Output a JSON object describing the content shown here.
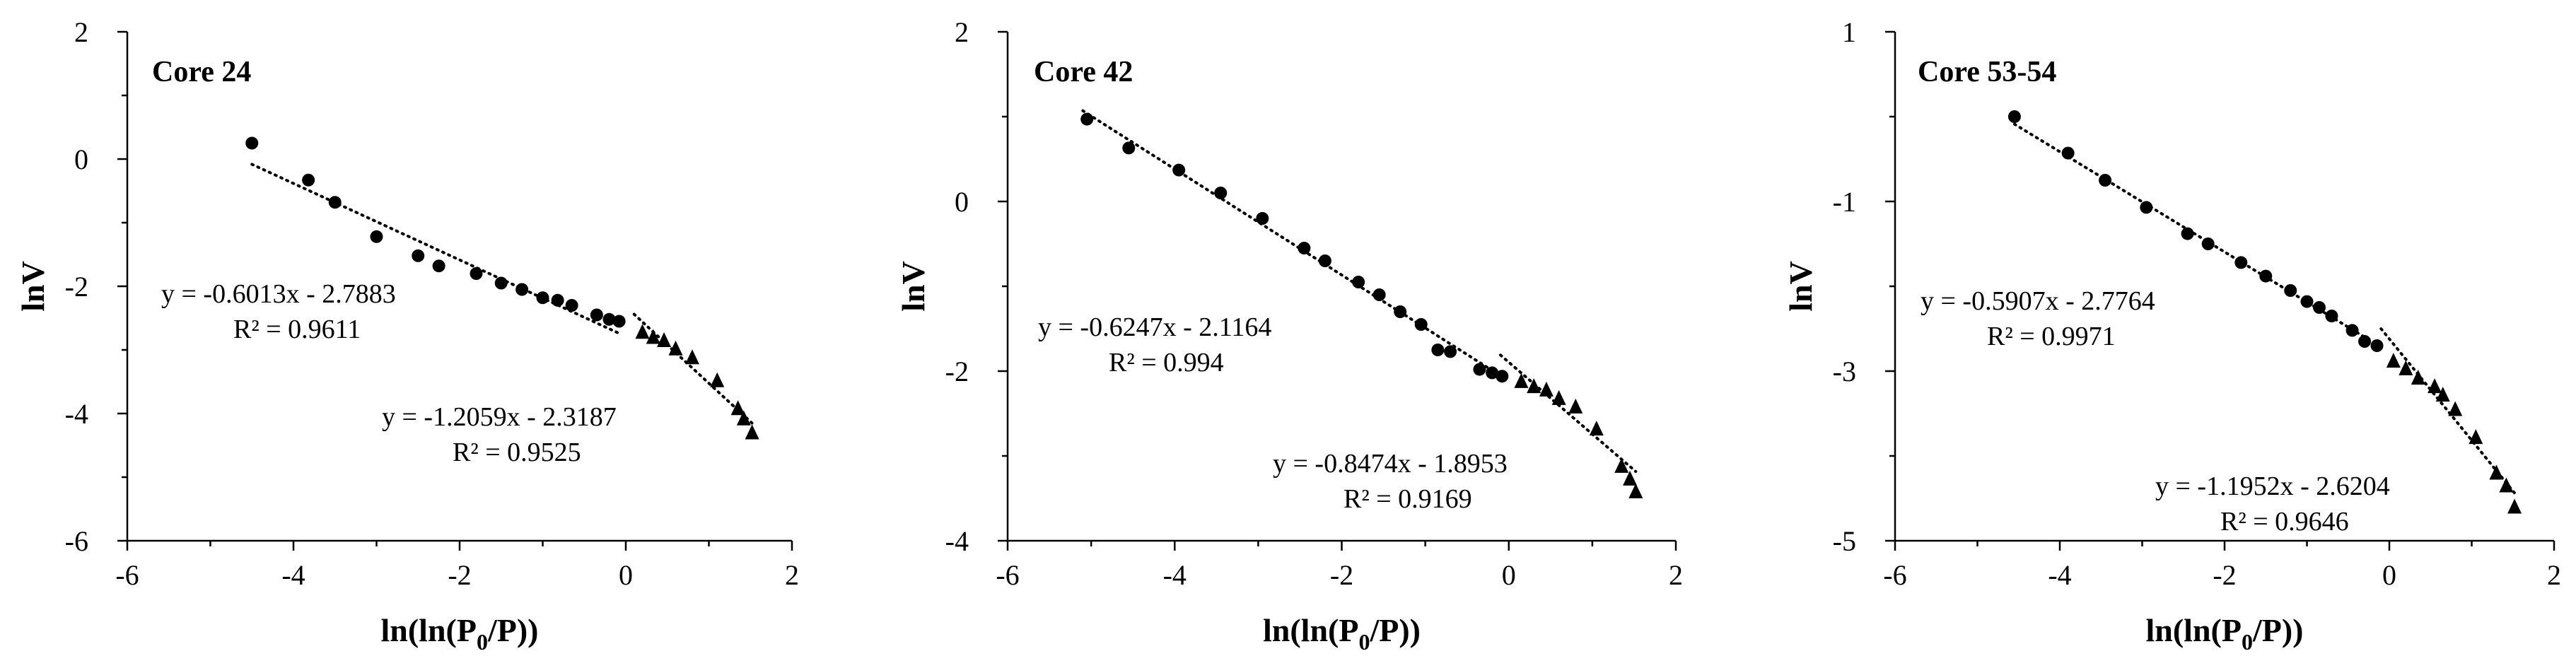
{
  "chart_data": [
    {
      "type": "scatter",
      "title": "Core 24",
      "xlabel_main": "ln(ln(P",
      "xlabel_sub": "0",
      "xlabel_tail": "/P))",
      "ylabel": "lnV",
      "xlim": [
        -6,
        2
      ],
      "ylim": [
        -6,
        2
      ],
      "xticks": [
        -6,
        -4,
        -2,
        0,
        2
      ],
      "yticks": [
        2,
        0,
        -2,
        -4,
        -6
      ],
      "series": [
        {
          "name": "circles",
          "marker": "circle",
          "x": [
            -4.5,
            -3.82,
            -3.5,
            -3.0,
            -2.5,
            -2.25,
            -1.8,
            -1.5,
            -1.25,
            -1.0,
            -0.82,
            -0.65,
            -0.35,
            -0.2,
            -0.08
          ],
          "y": [
            0.25,
            -0.33,
            -0.68,
            -1.22,
            -1.52,
            -1.68,
            -1.8,
            -1.95,
            -2.05,
            -2.18,
            -2.22,
            -2.3,
            -2.45,
            -2.52,
            -2.55
          ]
        },
        {
          "name": "triangles",
          "marker": "triangle",
          "x": [
            0.2,
            0.33,
            0.46,
            0.6,
            0.8,
            1.1,
            1.35,
            1.42,
            1.52
          ],
          "y": [
            -2.72,
            -2.8,
            -2.85,
            -2.98,
            -3.12,
            -3.48,
            -3.92,
            -4.08,
            -4.3
          ]
        }
      ],
      "trendlines": [
        {
          "slope": -0.6013,
          "intercept": -2.7883,
          "x_range": [
            -4.5,
            -0.05
          ],
          "label": "y = -0.6013x - 2.7883",
          "r2": "R² = 0.9611"
        },
        {
          "slope": -1.2059,
          "intercept": -2.3187,
          "x_range": [
            0.1,
            1.52
          ],
          "label": "y = -1.2059x - 2.3187",
          "r2": "R² = 0.9525"
        }
      ]
    },
    {
      "type": "scatter",
      "title": "Core 42",
      "xlabel_main": "ln(ln(P",
      "xlabel_sub": "0",
      "xlabel_tail": "/P))",
      "ylabel": "lnV",
      "xlim": [
        -6,
        2
      ],
      "ylim": [
        -4,
        2
      ],
      "xticks": [
        -6,
        -4,
        -2,
        0,
        2
      ],
      "yticks": [
        2,
        0,
        -2,
        -4
      ],
      "series": [
        {
          "name": "circles",
          "marker": "circle",
          "x": [
            -5.05,
            -4.55,
            -3.95,
            -3.45,
            -2.95,
            -2.45,
            -2.2,
            -1.8,
            -1.55,
            -1.3,
            -1.05,
            -0.85,
            -0.7,
            -0.35,
            -0.2,
            -0.08
          ],
          "y": [
            0.97,
            0.63,
            0.37,
            0.1,
            -0.2,
            -0.55,
            -0.7,
            -0.95,
            -1.1,
            -1.3,
            -1.45,
            -1.75,
            -1.77,
            -1.98,
            -2.02,
            -2.06
          ]
        },
        {
          "name": "triangles",
          "marker": "triangle",
          "x": [
            0.15,
            0.3,
            0.45,
            0.6,
            0.8,
            1.05,
            1.35,
            1.45,
            1.52
          ],
          "y": [
            -2.12,
            -2.18,
            -2.22,
            -2.32,
            -2.42,
            -2.68,
            -3.12,
            -3.27,
            -3.42
          ]
        }
      ],
      "trendlines": [
        {
          "slope": -0.6247,
          "intercept": -2.1164,
          "x_range": [
            -5.1,
            -0.05
          ],
          "label": "y = -0.6247x - 2.1164",
          "r2": "R² = 0.994"
        },
        {
          "slope": -0.8474,
          "intercept": -1.8953,
          "x_range": [
            -0.1,
            1.52
          ],
          "label": "y = -0.8474x - 1.8953",
          "r2": "R² = 0.9169"
        }
      ]
    },
    {
      "type": "scatter",
      "title": "Core 53-54",
      "xlabel_main": "ln(ln(P",
      "xlabel_sub": "0",
      "xlabel_tail": "/P))",
      "ylabel": "lnV",
      "xlim": [
        -6,
        2
      ],
      "ylim": [
        -5,
        1
      ],
      "xticks": [
        -6,
        -4,
        -2,
        0,
        2
      ],
      "yticks": [
        1,
        -1,
        -3,
        -5
      ],
      "series": [
        {
          "name": "circles",
          "marker": "circle",
          "x": [
            -4.55,
            -3.9,
            -3.45,
            -2.95,
            -2.45,
            -2.2,
            -1.8,
            -1.5,
            -1.2,
            -1.0,
            -0.85,
            -0.7,
            -0.45,
            -0.3,
            -0.15
          ],
          "y": [
            0.0,
            -0.43,
            -0.75,
            -1.07,
            -1.38,
            -1.5,
            -1.72,
            -1.88,
            -2.05,
            -2.18,
            -2.25,
            -2.35,
            -2.52,
            -2.65,
            -2.7
          ]
        },
        {
          "name": "triangles",
          "marker": "triangle",
          "x": [
            0.05,
            0.2,
            0.35,
            0.55,
            0.65,
            0.8,
            1.05,
            1.3,
            1.42,
            1.52
          ],
          "y": [
            -2.88,
            -2.97,
            -3.08,
            -3.18,
            -3.28,
            -3.45,
            -3.78,
            -4.2,
            -4.35,
            -4.6
          ]
        }
      ],
      "trendlines": [
        {
          "slope": -0.5907,
          "intercept": -2.7764,
          "x_range": [
            -4.55,
            -0.15
          ],
          "label": "y = -0.5907x - 2.7764",
          "r2": "R² = 0.9971"
        },
        {
          "slope": -1.1952,
          "intercept": -2.6204,
          "x_range": [
            -0.1,
            1.52
          ],
          "label": "y = -1.1952x - 2.6204",
          "r2": "R² = 0.9646"
        }
      ]
    }
  ]
}
